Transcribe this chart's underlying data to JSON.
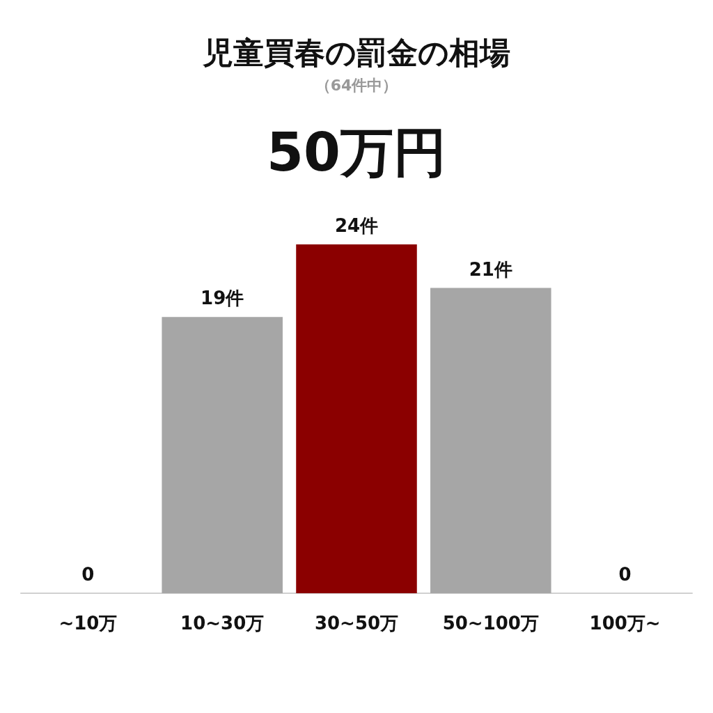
{
  "chart_data": {
    "type": "bar",
    "title": "児童買春の罰金の相場",
    "subtitle": "（64件中）",
    "annotations": [
      "50万円"
    ],
    "categories": [
      "~10万",
      "10~30万",
      "30~50万",
      "50~100万",
      "100万~"
    ],
    "values": [
      0,
      19,
      24,
      21,
      0
    ],
    "colors": [
      "#a6a6a6",
      "#a6a6a6",
      "#8b0000",
      "#a6a6a6",
      "#a6a6a6"
    ],
    "value_labels": [
      "0",
      "19件",
      "24件",
      "21件",
      "0"
    ]
  }
}
